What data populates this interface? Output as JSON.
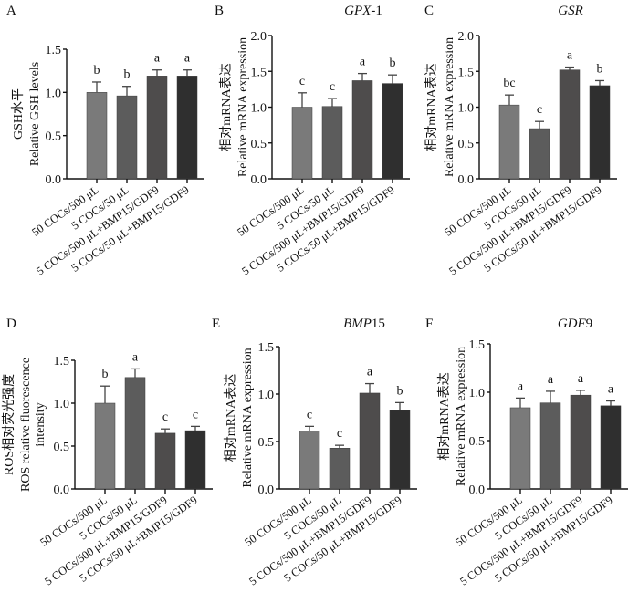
{
  "figure": {
    "bar_colors": [
      "#7a7a7a",
      "#5c5c5c",
      "#4e4c4c",
      "#2f2f2f"
    ],
    "categories": [
      "50 COCs/500 μL",
      "5 COCs/50 μL",
      "5 COCs/500 μL+BMP15/GDF9",
      "5 COCs/50 μL+BMP15/GDF9"
    ]
  },
  "chart_data": [
    {
      "panel": "A",
      "type": "bar",
      "title": "",
      "title_italic": "",
      "title_suffix": "",
      "ylabel_cn": "GSH水平",
      "ylabel_en": "Relative GSH levels",
      "ylabel_en2": "",
      "ylim": [
        0,
        1.5
      ],
      "yticks": [
        "0.0",
        "0.5",
        "1.0",
        "1.5"
      ],
      "ytick_values": [
        0,
        0.5,
        1.0,
        1.5
      ],
      "categories": [
        "50 COCs/500 μL",
        "5 COCs/50 μL",
        "5 COCs/500 μL+BMP15/GDF9",
        "5 COCs/50 μL+BMP15/GDF9"
      ],
      "values": [
        1.0,
        0.96,
        1.19,
        1.19
      ],
      "errors": [
        0.12,
        0.11,
        0.07,
        0.07
      ],
      "significance": [
        "b",
        "b",
        "a",
        "a"
      ]
    },
    {
      "panel": "B",
      "type": "bar",
      "title": "GPX-1",
      "title_italic": "GPX",
      "title_suffix": "-1",
      "ylabel_cn": "相对mRNA表达",
      "ylabel_en": "Relative mRNA expression",
      "ylabel_en2": "",
      "ylim": [
        0,
        2.0
      ],
      "yticks": [
        "0.0",
        "0.5",
        "1.0",
        "1.5",
        "2.0"
      ],
      "ytick_values": [
        0,
        0.5,
        1.0,
        1.5,
        2.0
      ],
      "categories": [
        "50 COCs/500 μL",
        "5 COCs/50 μL",
        "5 COCs/500 μL+BMP15/GDF9",
        "5 COCs/50 μL+BMP15/GDF9"
      ],
      "values": [
        1.0,
        1.01,
        1.37,
        1.33
      ],
      "errors": [
        0.2,
        0.11,
        0.1,
        0.12
      ],
      "significance": [
        "c",
        "c",
        "a",
        "b"
      ]
    },
    {
      "panel": "C",
      "type": "bar",
      "title": "GSR",
      "title_italic": "GSR",
      "title_suffix": "",
      "ylabel_cn": "相对mRNA表达",
      "ylabel_en": "Relative mRNA expression",
      "ylabel_en2": "",
      "ylim": [
        0,
        2.0
      ],
      "yticks": [
        "0.0",
        "0.5",
        "1.0",
        "1.5",
        "2.0"
      ],
      "ytick_values": [
        0,
        0.5,
        1.0,
        1.5,
        2.0
      ],
      "categories": [
        "50 COCs/500 μL",
        "5 COCs/50 μL",
        "5 COCs/500 μL+BMP15/GDF9",
        "5 COCs/50 μL+BMP15/GDF9"
      ],
      "values": [
        1.03,
        0.7,
        1.52,
        1.3
      ],
      "errors": [
        0.14,
        0.1,
        0.04,
        0.07
      ],
      "significance": [
        "bc",
        "c",
        "a",
        "b"
      ]
    },
    {
      "panel": "D",
      "type": "bar",
      "title": "",
      "title_italic": "",
      "title_suffix": "",
      "ylabel_cn": "ROS相对荧光强度",
      "ylabel_en": "ROS relative fluorescence",
      "ylabel_en2": "intensity",
      "ylim": [
        0,
        1.5
      ],
      "yticks": [
        "0.0",
        "0.5",
        "1.0",
        "1.5"
      ],
      "ytick_values": [
        0,
        0.5,
        1.0,
        1.5
      ],
      "categories": [
        "50 COCs/500 μL",
        "5 COCs/50 μL",
        "5 COCs/500 μL+BMP15/GDF9",
        "5 COCs/50 μL+BMP15/GDF9"
      ],
      "values": [
        1.0,
        1.3,
        0.65,
        0.68
      ],
      "errors": [
        0.2,
        0.1,
        0.05,
        0.05
      ],
      "significance": [
        "b",
        "a",
        "c",
        "c"
      ]
    },
    {
      "panel": "E",
      "type": "bar",
      "title": "BMP15",
      "title_italic": "BMP",
      "title_suffix": "15",
      "ylabel_cn": "相对mRNA表达",
      "ylabel_en": "Relative mRNA expression",
      "ylabel_en2": "",
      "ylim": [
        0,
        1.5
      ],
      "yticks": [
        "0.0",
        "0.5",
        "1.0",
        "1.5"
      ],
      "ytick_values": [
        0,
        0.5,
        1.0,
        1.5
      ],
      "categories": [
        "50 COCs/500 μL",
        "5 COCs/50 μL",
        "5 COCs/500 μL+BMP15/GDF9",
        "5 COCs/50 μL+BMP15/GDF9"
      ],
      "values": [
        0.61,
        0.43,
        1.01,
        0.83
      ],
      "errors": [
        0.05,
        0.03,
        0.1,
        0.08
      ],
      "significance": [
        "c",
        "c",
        "a",
        "b"
      ]
    },
    {
      "panel": "F",
      "type": "bar",
      "title": "GDF9",
      "title_italic": "GDF",
      "title_suffix": "9",
      "ylabel_cn": "相对mRNA表达",
      "ylabel_en": "Relative mRNA expression",
      "ylabel_en2": "",
      "ylim": [
        0,
        1.5
      ],
      "yticks": [
        "0.0",
        "0.5",
        "1.0",
        "1.5"
      ],
      "ytick_values": [
        0,
        0.5,
        1.0,
        1.5
      ],
      "categories": [
        "50 COCs/500 μL",
        "5 COCs/50 μL",
        "5 COCs/500 μL+BMP15/GDF9",
        "5 COCs/50 μL+BMP15/GDF9"
      ],
      "values": [
        0.84,
        0.89,
        0.97,
        0.86
      ],
      "errors": [
        0.1,
        0.12,
        0.05,
        0.05
      ],
      "significance": [
        "a",
        "a",
        "a",
        "a"
      ]
    }
  ]
}
